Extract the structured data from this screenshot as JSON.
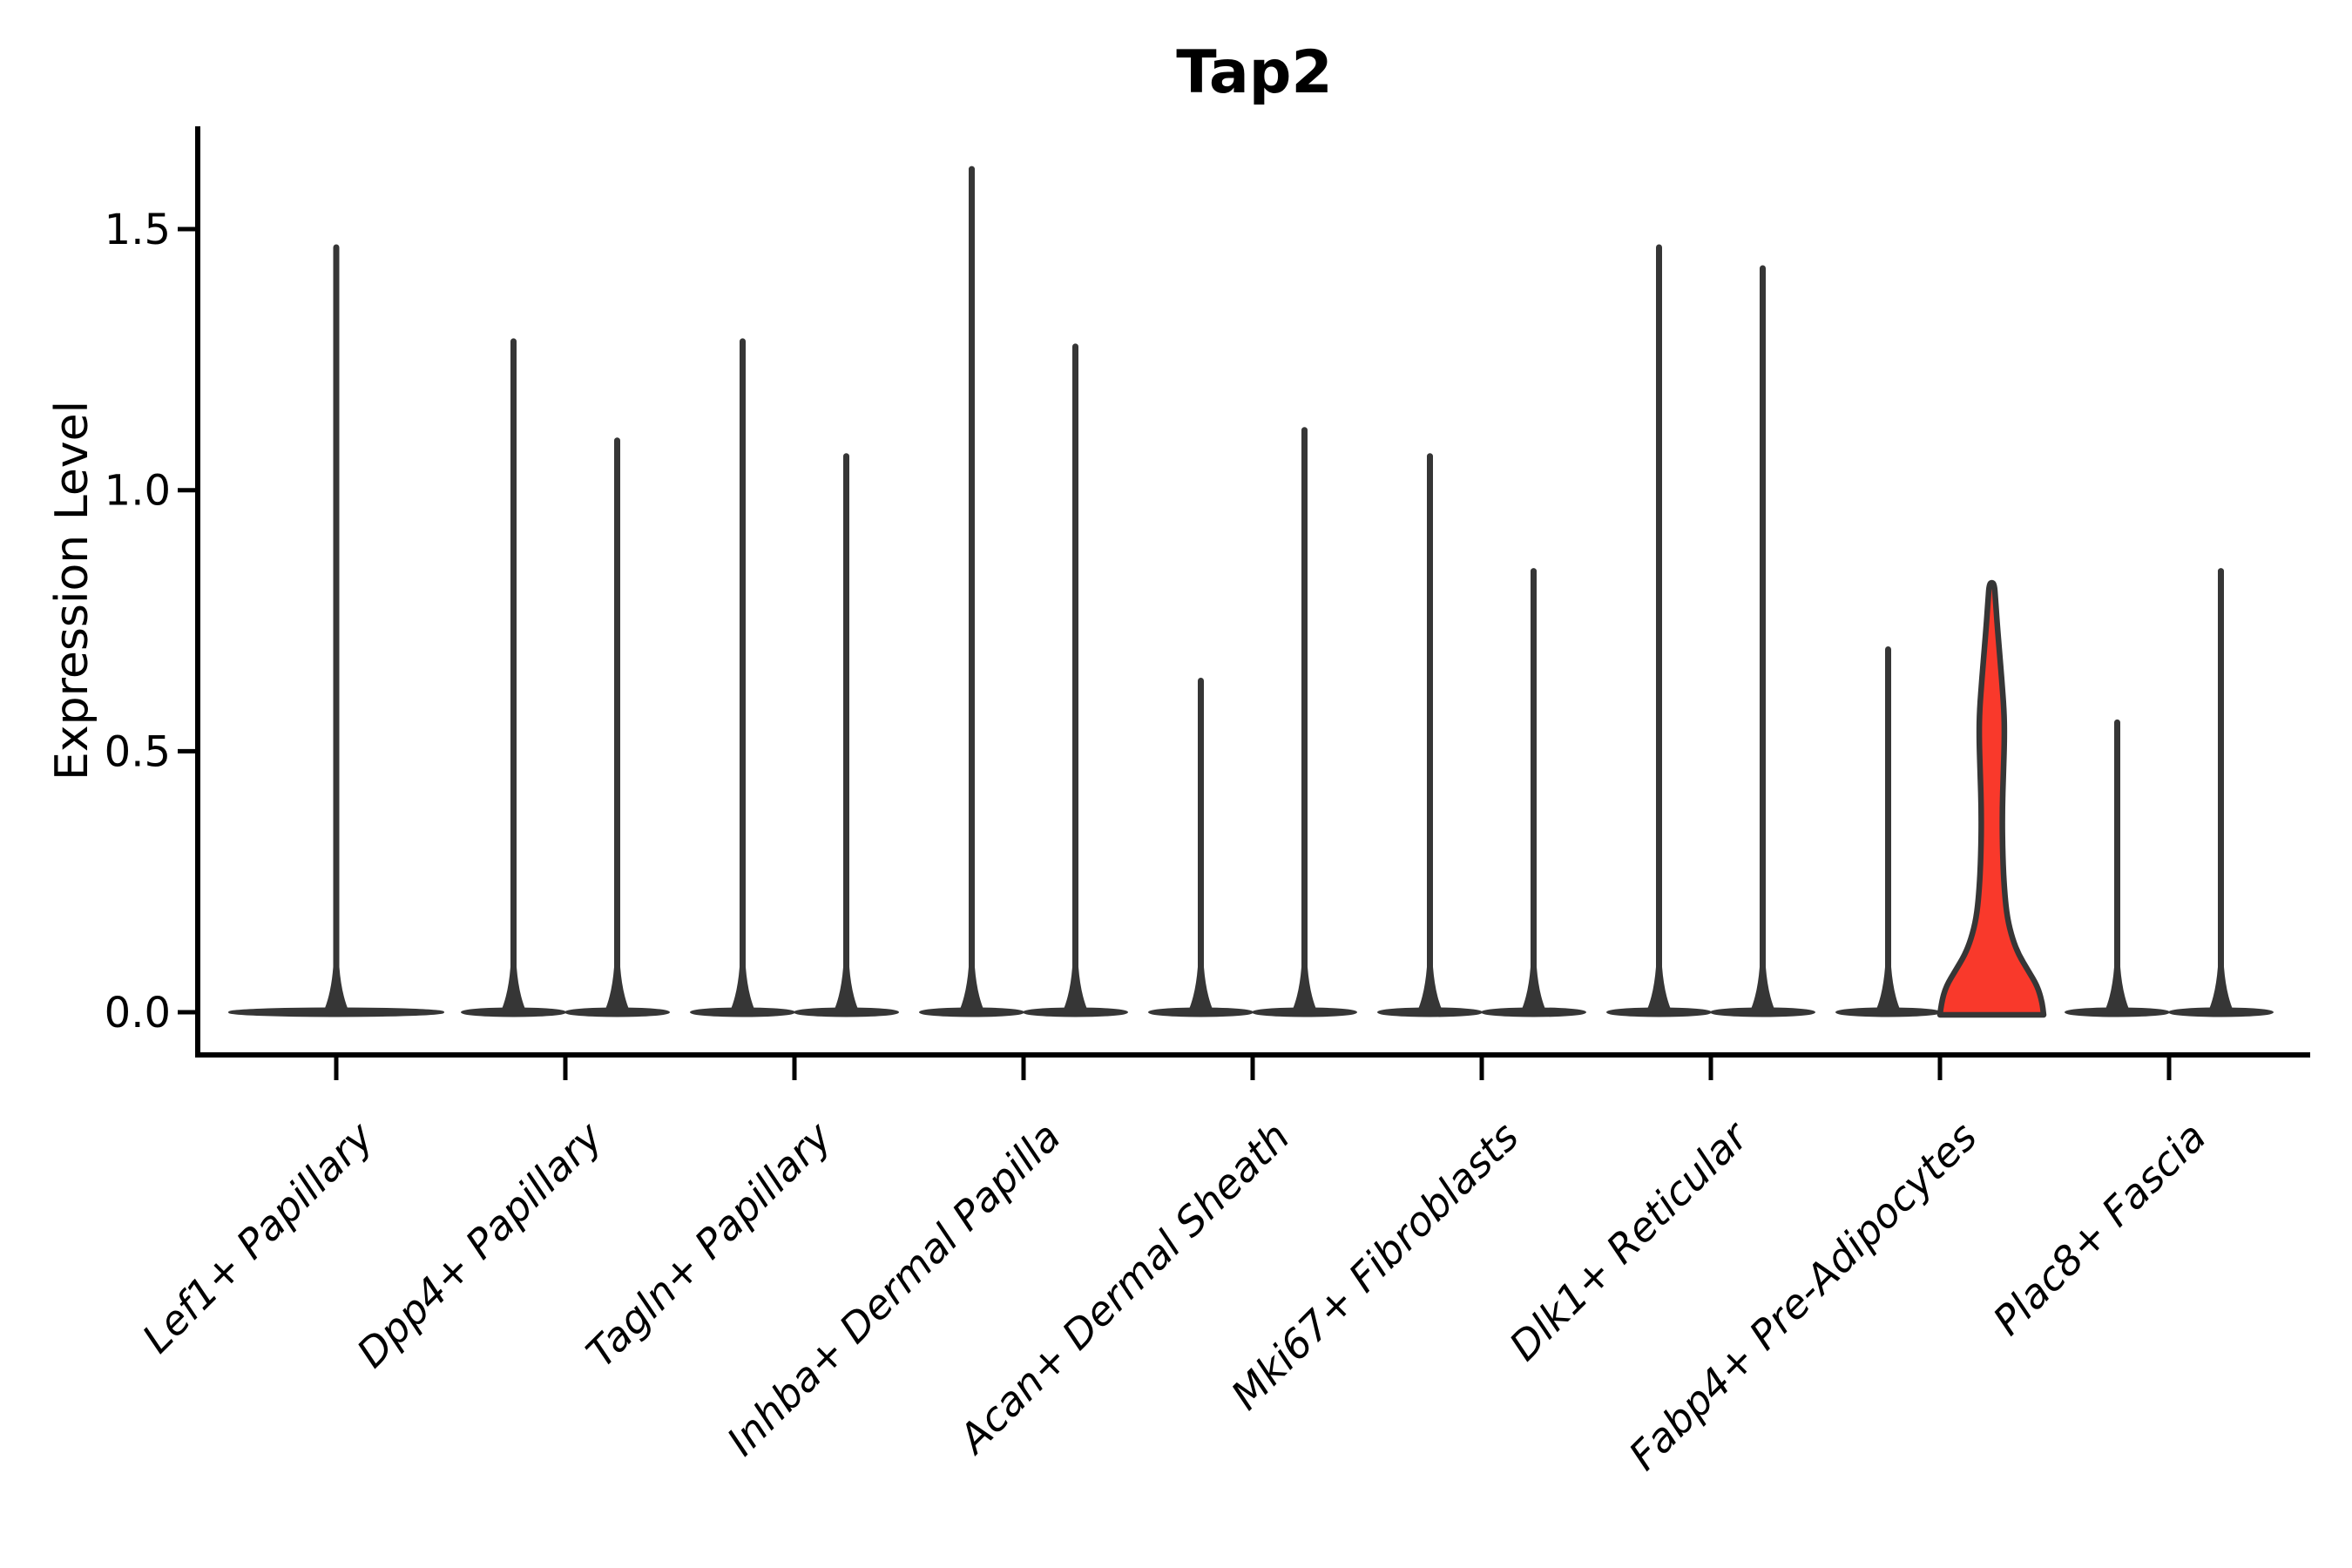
{
  "figure": {
    "title": "Tap2",
    "y_axis_label": "Expression Level"
  },
  "chart_data": {
    "type": "violin",
    "title": "Tap2",
    "xlabel": "",
    "ylabel": "Expression Level",
    "ylim": [
      -0.08,
      1.7
    ],
    "grid": false,
    "legend": "none",
    "x_tick_label_style": "italic, rotated 45 degrees, anchored at tick",
    "y_ticks": [
      {
        "value": 0.0,
        "label": "0.0"
      },
      {
        "value": 0.5,
        "label": "0.5"
      },
      {
        "value": 1.0,
        "label": "1.0"
      },
      {
        "value": 1.5,
        "label": "1.5"
      }
    ],
    "categories": [
      "Lef1+ Papillary",
      "Dpp4+ Papillary",
      "Tagln+ Papillary",
      "Inhba+ Dermal Papilla",
      "Acan+ Dermal Sheath",
      "Mki67+ Fibroblasts",
      "Dlk1+ Reticular",
      "Fabp4+ Pre-Adipocytes",
      "Plac8+ Fascia"
    ],
    "series_note": "Each category shows two side-by-side violins (Lef1+ Papillary shows one centered violin). Nearly all density sits at expression 0 (flat pancake) with a thin spike up to the maximum expression value. Only the right violin of Fabp4+ Pre-Adipocytes has a visible red-filled body.",
    "violins": [
      {
        "category": "Lef1+ Papillary",
        "slot": "center",
        "max_expression": 1.47,
        "shape": "collapsed-at-zero",
        "highlighted": false
      },
      {
        "category": "Dpp4+ Papillary",
        "slot": "left",
        "max_expression": 1.29,
        "shape": "collapsed-at-zero",
        "highlighted": false
      },
      {
        "category": "Dpp4+ Papillary",
        "slot": "right",
        "max_expression": 1.1,
        "shape": "collapsed-at-zero",
        "highlighted": false
      },
      {
        "category": "Tagln+ Papillary",
        "slot": "left",
        "max_expression": 1.29,
        "shape": "collapsed-at-zero",
        "highlighted": false
      },
      {
        "category": "Tagln+ Papillary",
        "slot": "right",
        "max_expression": 1.07,
        "shape": "collapsed-at-zero",
        "highlighted": false
      },
      {
        "category": "Inhba+ Dermal Papilla",
        "slot": "left",
        "max_expression": 1.62,
        "shape": "collapsed-at-zero",
        "highlighted": false
      },
      {
        "category": "Inhba+ Dermal Papilla",
        "slot": "right",
        "max_expression": 1.28,
        "shape": "collapsed-at-zero",
        "highlighted": false
      },
      {
        "category": "Acan+ Dermal Sheath",
        "slot": "left",
        "max_expression": 0.64,
        "shape": "collapsed-at-zero",
        "highlighted": false
      },
      {
        "category": "Acan+ Dermal Sheath",
        "slot": "right",
        "max_expression": 1.12,
        "shape": "collapsed-at-zero",
        "highlighted": false
      },
      {
        "category": "Mki67+ Fibroblasts",
        "slot": "left",
        "max_expression": 1.07,
        "shape": "collapsed-at-zero",
        "highlighted": false
      },
      {
        "category": "Mki67+ Fibroblasts",
        "slot": "right",
        "max_expression": 0.85,
        "shape": "collapsed-at-zero",
        "highlighted": false
      },
      {
        "category": "Dlk1+ Reticular",
        "slot": "left",
        "max_expression": 1.47,
        "shape": "collapsed-at-zero",
        "highlighted": false
      },
      {
        "category": "Dlk1+ Reticular",
        "slot": "right",
        "max_expression": 1.43,
        "shape": "collapsed-at-zero",
        "highlighted": false
      },
      {
        "category": "Fabp4+ Pre-Adipocytes",
        "slot": "left",
        "max_expression": 0.7,
        "shape": "collapsed-at-zero",
        "highlighted": false
      },
      {
        "category": "Fabp4+ Pre-Adipocytes",
        "slot": "right",
        "max_expression": 0.82,
        "shape": "violin-with-visible-body",
        "highlighted": true,
        "fill": "#f9392b",
        "body_profile": [
          [
            0.0,
            1.0
          ],
          [
            0.02,
            0.97
          ],
          [
            0.05,
            0.88
          ],
          [
            0.08,
            0.7
          ],
          [
            0.11,
            0.52
          ],
          [
            0.14,
            0.4
          ],
          [
            0.18,
            0.3
          ],
          [
            0.23,
            0.245
          ],
          [
            0.3,
            0.21
          ],
          [
            0.38,
            0.2
          ],
          [
            0.46,
            0.225
          ],
          [
            0.53,
            0.245
          ],
          [
            0.58,
            0.235
          ],
          [
            0.64,
            0.19
          ],
          [
            0.7,
            0.14
          ],
          [
            0.75,
            0.1
          ],
          [
            0.79,
            0.07
          ],
          [
            0.82,
            0.05
          ]
        ]
      },
      {
        "category": "Plac8+ Fascia",
        "slot": "left",
        "max_expression": 0.56,
        "shape": "collapsed-at-zero",
        "highlighted": false
      },
      {
        "category": "Plac8+ Fascia",
        "slot": "right",
        "max_expression": 0.85,
        "shape": "collapsed-at-zero",
        "highlighted": false
      }
    ],
    "colors": {
      "violin_stroke": "#363636",
      "highlight_fill": "#f9392b",
      "axis": "#000000",
      "text": "#000000",
      "background": "#ffffff"
    }
  }
}
